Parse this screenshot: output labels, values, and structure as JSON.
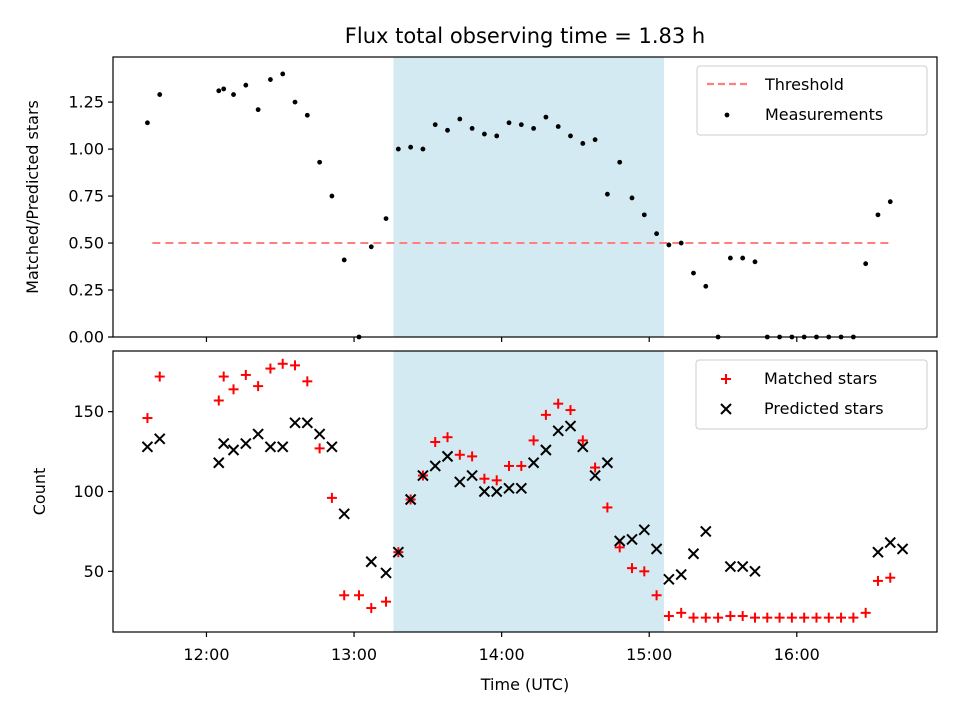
{
  "chart_data": {
    "title": "Flux total observing time = 1.83 h",
    "xlabel": "Time (UTC)",
    "x_ticks": [
      "12:00",
      "13:00",
      "14:00",
      "15:00",
      "16:00"
    ],
    "xlim": [
      "11:22",
      "16:57"
    ],
    "highlight": {
      "start": "13:16",
      "end": "15:06",
      "color": "#add8e6"
    },
    "panels": [
      {
        "type": "scatter",
        "ylabel": "Matched/Predicted stars",
        "ylim": [
          0,
          1.49
        ],
        "y_ticks": [
          0.0,
          0.25,
          0.5,
          0.75,
          1.0,
          1.25
        ],
        "y_tick_labels": [
          "0.00",
          "0.25",
          "0.50",
          "0.75",
          "1.00",
          "1.25"
        ],
        "legend_position": "upper right",
        "threshold": {
          "name": "Threshold",
          "value": 0.5,
          "x_start": "11:38",
          "x_end": "16:38",
          "color": "#ff7f7f",
          "style": "dashed"
        },
        "series": [
          {
            "name": "Measurements",
            "marker": "dot",
            "color": "#000000",
            "x": [
              "11:36",
              "11:41",
              "12:05",
              "12:07",
              "12:11",
              "12:16",
              "12:21",
              "12:26",
              "12:31",
              "12:36",
              "12:41",
              "12:46",
              "12:51",
              "12:56",
              "13:02",
              "13:07",
              "13:13",
              "13:18",
              "13:23",
              "13:28",
              "13:33",
              "13:38",
              "13:43",
              "13:48",
              "13:53",
              "13:58",
              "14:03",
              "14:08",
              "14:13",
              "14:18",
              "14:23",
              "14:28",
              "14:33",
              "14:38",
              "14:43",
              "14:48",
              "14:53",
              "14:58",
              "15:03",
              "15:08",
              "15:13",
              "15:18",
              "15:23",
              "15:28",
              "15:33",
              "15:38",
              "15:43",
              "15:48",
              "15:53",
              "15:58",
              "16:03",
              "16:08",
              "16:13",
              "16:18",
              "16:23",
              "16:28",
              "16:33",
              "16:38"
            ],
            "y": [
              1.14,
              1.29,
              1.31,
              1.32,
              1.29,
              1.34,
              1.21,
              1.37,
              1.4,
              1.25,
              1.18,
              0.93,
              0.75,
              0.41,
              0.0,
              0.48,
              0.63,
              1.0,
              1.01,
              1.0,
              1.13,
              1.1,
              1.16,
              1.11,
              1.08,
              1.07,
              1.14,
              1.13,
              1.11,
              1.17,
              1.12,
              1.07,
              1.03,
              1.05,
              0.76,
              0.93,
              0.74,
              0.65,
              0.55,
              0.49,
              0.5,
              0.34,
              0.27,
              0.0,
              0.42,
              0.42,
              0.4,
              0.0,
              0.0,
              0.0,
              0.0,
              0.0,
              0.0,
              0.0,
              0.0,
              0.39,
              0.65,
              0.72
            ]
          }
        ]
      },
      {
        "type": "scatter",
        "ylabel": "Count",
        "ylim": [
          12,
          188
        ],
        "y_ticks": [
          50,
          100,
          150
        ],
        "y_tick_labels": [
          "50",
          "100",
          "150"
        ],
        "legend_position": "upper right",
        "series": [
          {
            "name": "Matched stars",
            "marker": "plus",
            "color": "#ff0000",
            "x": [
              "11:36",
              "11:41",
              "12:05",
              "12:07",
              "12:11",
              "12:16",
              "12:21",
              "12:26",
              "12:31",
              "12:36",
              "12:41",
              "12:46",
              "12:51",
              "12:56",
              "13:02",
              "13:07",
              "13:13",
              "13:18",
              "13:23",
              "13:28",
              "13:33",
              "13:38",
              "13:43",
              "13:48",
              "13:53",
              "13:58",
              "14:03",
              "14:08",
              "14:13",
              "14:18",
              "14:23",
              "14:28",
              "14:33",
              "14:38",
              "14:43",
              "14:48",
              "14:53",
              "14:58",
              "15:03",
              "15:08",
              "15:13",
              "15:18",
              "15:23",
              "15:28",
              "15:33",
              "15:38",
              "15:43",
              "15:48",
              "15:53",
              "15:58",
              "16:03",
              "16:08",
              "16:13",
              "16:18",
              "16:23",
              "16:28",
              "16:33",
              "16:38"
            ],
            "y": [
              146,
              172,
              157,
              172,
              164,
              173,
              166,
              177,
              180,
              179,
              169,
              127,
              96,
              35,
              35,
              27,
              31,
              62,
              95,
              110,
              131,
              134,
              123,
              122,
              108,
              107,
              116,
              116,
              132,
              148,
              155,
              151,
              132,
              115,
              90,
              65,
              52,
              50,
              35,
              22,
              24,
              21,
              21,
              21,
              22,
              22,
              21,
              21,
              21,
              21,
              21,
              21,
              21,
              21,
              21,
              24,
              44,
              46
            ]
          },
          {
            "name": "Predicted stars",
            "marker": "x",
            "color": "#000000",
            "x": [
              "11:36",
              "11:41",
              "12:05",
              "12:07",
              "12:11",
              "12:16",
              "12:21",
              "12:26",
              "12:31",
              "12:36",
              "12:41",
              "12:46",
              "12:51",
              "12:56",
              "13:07",
              "13:13",
              "13:18",
              "13:23",
              "13:28",
              "13:33",
              "13:38",
              "13:43",
              "13:48",
              "13:53",
              "13:58",
              "14:03",
              "14:08",
              "14:13",
              "14:18",
              "14:23",
              "14:28",
              "14:33",
              "14:38",
              "14:43",
              "14:48",
              "14:53",
              "14:58",
              "15:03",
              "15:08",
              "15:13",
              "15:18",
              "15:23",
              "15:33",
              "15:38",
              "15:43",
              "16:33",
              "16:38",
              "16:43"
            ],
            "y": [
              128,
              133,
              118,
              130,
              126,
              130,
              136,
              128,
              128,
              143,
              143,
              136,
              128,
              86,
              56,
              49,
              62,
              95,
              110,
              116,
              122,
              106,
              110,
              100,
              100,
              102,
              102,
              118,
              126,
              138,
              141,
              128,
              110,
              118,
              69,
              70,
              76,
              64,
              45,
              48,
              61,
              75,
              53,
              53,
              50,
              62,
              68,
              64
            ]
          }
        ]
      }
    ]
  }
}
